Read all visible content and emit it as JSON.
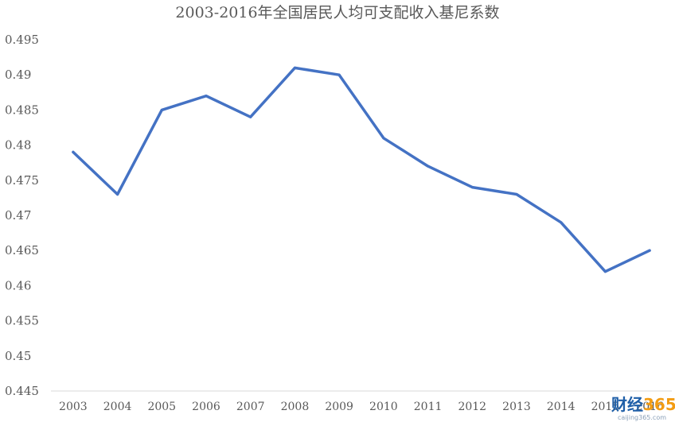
{
  "chart_data": {
    "type": "line",
    "title": "2003-2016年全国居民人均可支配收入基尼系数",
    "xlabel": "",
    "ylabel": "",
    "categories": [
      "2003",
      "2004",
      "2005",
      "2006",
      "2007",
      "2008",
      "2009",
      "2010",
      "2011",
      "2012",
      "2013",
      "2014",
      "2015",
      "2016"
    ],
    "series": [
      {
        "values": [
          0.479,
          0.473,
          0.485,
          0.487,
          0.484,
          0.491,
          0.49,
          0.481,
          0.477,
          0.474,
          0.473,
          0.469,
          0.462,
          0.465
        ]
      }
    ],
    "ylim": [
      0.445,
      0.495
    ],
    "yticks": [
      "0.445",
      "0.45",
      "0.455",
      "0.46",
      "0.465",
      "0.47",
      "0.475",
      "0.48",
      "0.485",
      "0.49",
      "0.495"
    ],
    "grid": false,
    "legend": "none",
    "line_color": "#4472c4"
  },
  "watermark": {
    "part1": "财经",
    "part2": "365",
    "sub": "caijing365.com",
    "color1": "#1f5fa8",
    "color2": "#f39c12"
  }
}
